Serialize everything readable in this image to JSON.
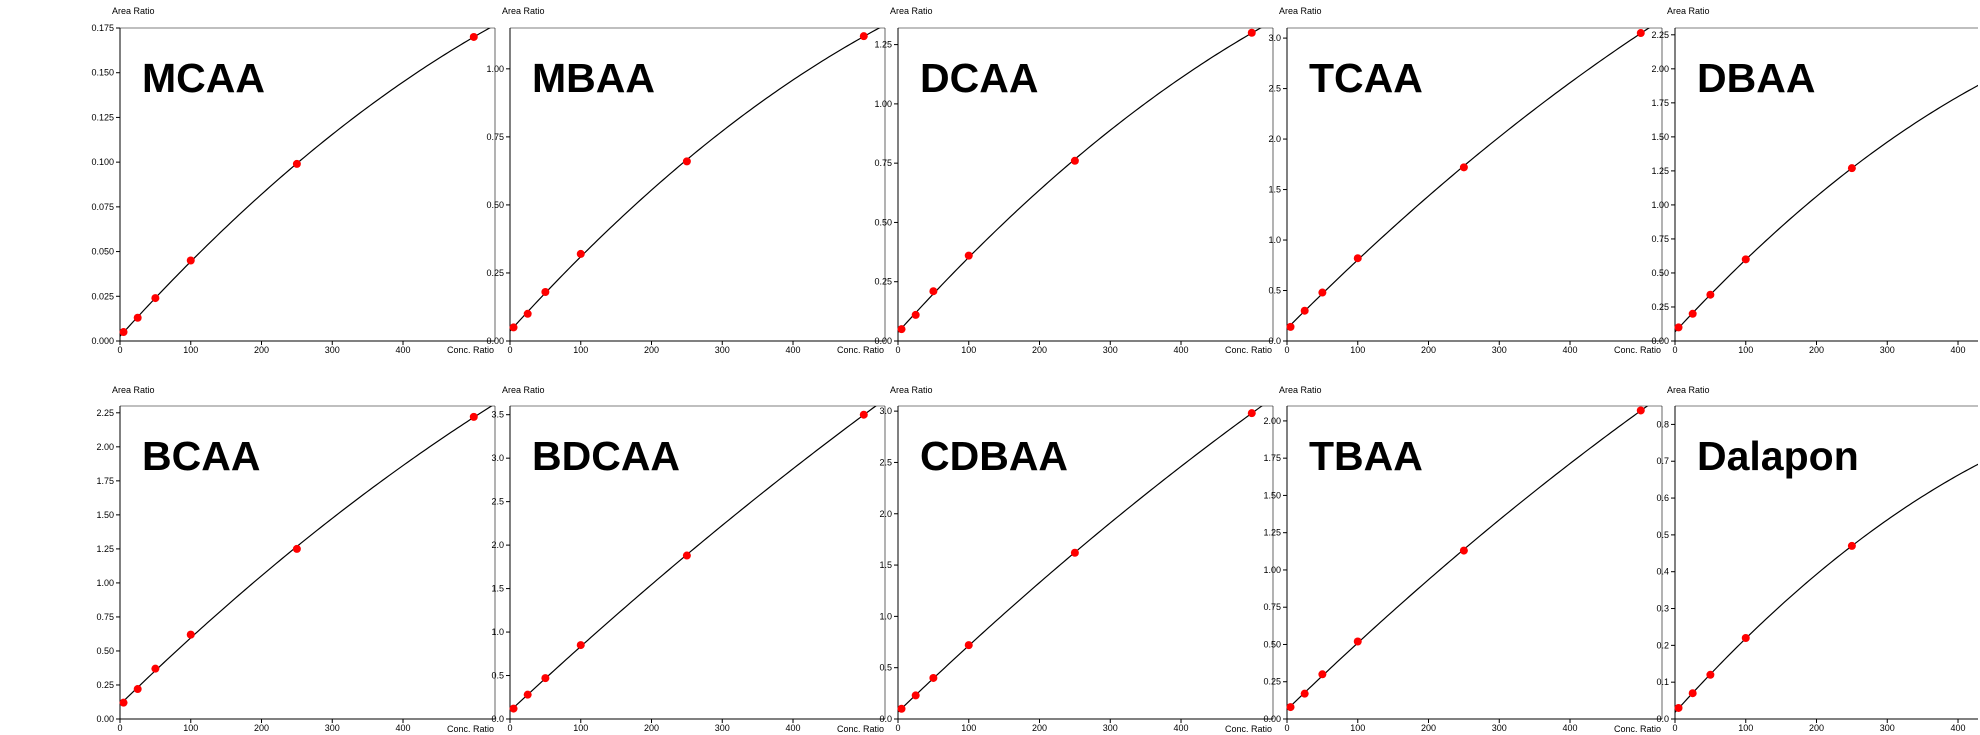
{
  "chart_data": [
    {
      "type": "scatter",
      "title": "MCAA",
      "ylabel": "Area Ratio",
      "xlabel": "Conc. Ratio",
      "x": [
        5,
        25,
        50,
        100,
        250,
        500
      ],
      "y": [
        0.005,
        0.013,
        0.024,
        0.045,
        0.099,
        0.17
      ],
      "xlim": [
        0,
        530
      ],
      "ylim": [
        0,
        0.175
      ],
      "xticks": [
        0,
        100,
        200,
        300,
        400
      ],
      "yticks": [
        0,
        0.025,
        0.05,
        0.075,
        0.1,
        0.125,
        0.15,
        0.175
      ],
      "ytick_labels": [
        "0.000",
        "0.025",
        "0.050",
        "0.075",
        "0.100",
        "0.125",
        "0.150",
        "0.175"
      ],
      "fit": "quadratic"
    },
    {
      "type": "scatter",
      "title": "MBAA",
      "ylabel": "Area Ratio",
      "xlabel": "Conc. Ratio",
      "x": [
        5,
        25,
        50,
        100,
        250,
        500
      ],
      "y": [
        0.05,
        0.1,
        0.18,
        0.32,
        0.66,
        1.12
      ],
      "xlim": [
        0,
        530
      ],
      "ylim": [
        0,
        1.15
      ],
      "xticks": [
        0,
        100,
        200,
        300,
        400
      ],
      "yticks": [
        0,
        0.25,
        0.5,
        0.75,
        1.0
      ],
      "ytick_labels": [
        "0.00",
        "0.25",
        "0.50",
        "0.75",
        "1.00"
      ],
      "fit": "quadratic"
    },
    {
      "type": "scatter",
      "title": "DCAA",
      "ylabel": "Area Ratio",
      "xlabel": "Conc. Ratio",
      "x": [
        5,
        25,
        50,
        100,
        250,
        500
      ],
      "y": [
        0.05,
        0.11,
        0.21,
        0.36,
        0.76,
        1.3
      ],
      "xlim": [
        0,
        530
      ],
      "ylim": [
        0,
        1.32
      ],
      "xticks": [
        0,
        100,
        200,
        300,
        400
      ],
      "yticks": [
        0,
        0.25,
        0.5,
        0.75,
        1.0,
        1.25
      ],
      "ytick_labels": [
        "0.00",
        "0.25",
        "0.50",
        "0.75",
        "1.00",
        "1.25"
      ],
      "fit": "quadratic"
    },
    {
      "type": "scatter",
      "title": "TCAA",
      "ylabel": "Area Ratio",
      "xlabel": "Conc. Ratio",
      "x": [
        5,
        25,
        50,
        100,
        250,
        500
      ],
      "y": [
        0.14,
        0.3,
        0.48,
        0.82,
        1.72,
        3.05
      ],
      "xlim": [
        0,
        530
      ],
      "ylim": [
        0,
        3.1
      ],
      "xticks": [
        0,
        100,
        200,
        300,
        400
      ],
      "yticks": [
        0,
        0.5,
        1.0,
        1.5,
        2.0,
        2.5,
        3.0
      ],
      "ytick_labels": [
        "0.0",
        "0.5",
        "1.0",
        "1.5",
        "2.0",
        "2.5",
        "3.0"
      ],
      "fit": "quadratic"
    },
    {
      "type": "scatter",
      "title": "DBAA",
      "ylabel": "Area Ratio",
      "xlabel": "",
      "x": [
        5,
        25,
        50,
        100,
        250
      ],
      "y": [
        0.1,
        0.2,
        0.34,
        0.6,
        1.27
      ],
      "xlim": [
        0,
        530
      ],
      "ylim": [
        0,
        2.3
      ],
      "xticks": [
        0,
        100,
        200,
        300,
        400
      ],
      "yticks": [
        0,
        0.25,
        0.5,
        0.75,
        1.0,
        1.25,
        1.5,
        1.75,
        2.0,
        2.25
      ],
      "ytick_labels": [
        "0.00",
        "0.25",
        "0.50",
        "0.75",
        "1.00",
        "1.25",
        "1.50",
        "1.75",
        "2.00",
        "2.25"
      ],
      "fit": "quadratic",
      "curve_to": 2.35
    },
    {
      "type": "scatter",
      "title": "BCAA",
      "ylabel": "Area Ratio",
      "xlabel": "Conc. Ratio",
      "x": [
        5,
        25,
        50,
        100,
        250,
        500
      ],
      "y": [
        0.12,
        0.22,
        0.37,
        0.62,
        1.25,
        2.22
      ],
      "xlim": [
        0,
        530
      ],
      "ylim": [
        0,
        2.3
      ],
      "xticks": [
        0,
        100,
        200,
        300,
        400
      ],
      "yticks": [
        0,
        0.25,
        0.5,
        0.75,
        1.0,
        1.25,
        1.5,
        1.75,
        2.0,
        2.25
      ],
      "ytick_labels": [
        "0.00",
        "0.25",
        "0.50",
        "0.75",
        "1.00",
        "1.25",
        "1.50",
        "1.75",
        "2.00",
        "2.25"
      ],
      "fit": "quadratic"
    },
    {
      "type": "scatter",
      "title": "BDCAA",
      "ylabel": "Area Ratio",
      "xlabel": "Conc. Ratio",
      "x": [
        5,
        25,
        50,
        100,
        250,
        500
      ],
      "y": [
        0.12,
        0.28,
        0.47,
        0.85,
        1.88,
        3.5
      ],
      "xlim": [
        0,
        530
      ],
      "ylim": [
        0,
        3.6
      ],
      "xticks": [
        0,
        100,
        200,
        300,
        400
      ],
      "yticks": [
        0,
        0.5,
        1.0,
        1.5,
        2.0,
        2.5,
        3.0,
        3.5
      ],
      "ytick_labels": [
        "0.0",
        "0.5",
        "1.0",
        "1.5",
        "2.0",
        "2.5",
        "3.0",
        "3.5"
      ],
      "fit": "quadratic"
    },
    {
      "type": "scatter",
      "title": "CDBAA",
      "ylabel": "Area Ratio",
      "xlabel": "Conc. Ratio",
      "x": [
        5,
        25,
        50,
        100,
        250,
        500
      ],
      "y": [
        0.1,
        0.23,
        0.4,
        0.72,
        1.62,
        2.98
      ],
      "xlim": [
        0,
        530
      ],
      "ylim": [
        0,
        3.05
      ],
      "xticks": [
        0,
        100,
        200,
        300,
        400
      ],
      "yticks": [
        0,
        0.5,
        1.0,
        1.5,
        2.0,
        2.5,
        3.0
      ],
      "ytick_labels": [
        "0.0",
        "0.5",
        "1.0",
        "1.5",
        "2.0",
        "2.5",
        "3.0"
      ],
      "fit": "quadratic"
    },
    {
      "type": "scatter",
      "title": "TBAA",
      "ylabel": "Area Ratio",
      "xlabel": "Conc. Ratio",
      "x": [
        5,
        25,
        50,
        100,
        250,
        500
      ],
      "y": [
        0.08,
        0.17,
        0.3,
        0.52,
        1.13,
        2.07
      ],
      "xlim": [
        0,
        530
      ],
      "ylim": [
        0,
        2.1
      ],
      "xticks": [
        0,
        100,
        200,
        300,
        400
      ],
      "yticks": [
        0,
        0.25,
        0.5,
        0.75,
        1.0,
        1.25,
        1.5,
        1.75,
        2.0
      ],
      "ytick_labels": [
        "0.00",
        "0.25",
        "0.50",
        "0.75",
        "1.00",
        "1.25",
        "1.50",
        "1.75",
        "2.00"
      ],
      "fit": "quadratic"
    },
    {
      "type": "scatter",
      "title": "Dalapon",
      "ylabel": "Area Ratio",
      "xlabel": "",
      "x": [
        5,
        25,
        50,
        100,
        250
      ],
      "y": [
        0.03,
        0.07,
        0.12,
        0.22,
        0.47
      ],
      "xlim": [
        0,
        530
      ],
      "ylim": [
        0,
        0.85
      ],
      "xticks": [
        0,
        100,
        200,
        300,
        400
      ],
      "yticks": [
        0,
        0.1,
        0.2,
        0.3,
        0.4,
        0.5,
        0.6,
        0.7,
        0.8
      ],
      "ytick_labels": [
        "0.0",
        "0.1",
        "0.2",
        "0.3",
        "0.4",
        "0.5",
        "0.6",
        "0.7",
        "0.8"
      ],
      "fit": "quadratic",
      "curve_to": 0.76
    }
  ],
  "colors": {
    "points": "#ff0000",
    "curve": "#000000",
    "axis": "#000000"
  }
}
